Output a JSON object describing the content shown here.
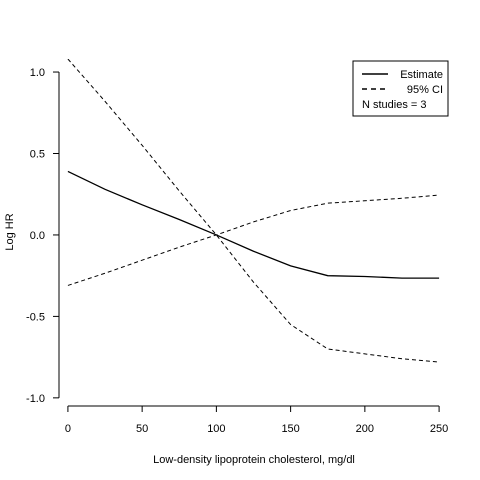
{
  "chart_data": {
    "type": "line",
    "title": "",
    "xlabel": "Low-density lipoprotein cholesterol, mg/dl",
    "ylabel": "Log HR",
    "xlim": [
      -6,
      256
    ],
    "ylim": [
      -1.05,
      1.08
    ],
    "x_ticks": [
      0,
      50,
      100,
      150,
      200,
      250
    ],
    "y_ticks": [
      -1.0,
      -0.5,
      0.0,
      0.5,
      1.0
    ],
    "x_tick_labels": [
      "0",
      "50",
      "100",
      "150",
      "200",
      "250"
    ],
    "y_tick_labels": [
      "-1.0",
      "-0.5",
      "0.0",
      "0.5",
      "1.0"
    ],
    "grid": false,
    "legend": {
      "placement": "top-right",
      "entries": [
        {
          "label": "Estimate",
          "line": "solid"
        },
        {
          "label": "95% CI",
          "line": "dashed"
        }
      ],
      "note": "N studies = 3"
    },
    "series": [
      {
        "role": "estimate",
        "line": "solid",
        "points": [
          [
            0,
            0.39
          ],
          [
            25,
            0.28
          ],
          [
            50,
            0.185
          ],
          [
            75,
            0.095
          ],
          [
            100,
            0.0
          ],
          [
            125,
            -0.1
          ],
          [
            150,
            -0.19
          ],
          [
            175,
            -0.25
          ],
          [
            200,
            -0.255
          ],
          [
            225,
            -0.265
          ],
          [
            250,
            -0.265
          ]
        ]
      },
      {
        "role": "ci_upper",
        "line": "dashed",
        "points": [
          [
            0,
            1.08
          ],
          [
            25,
            0.82
          ],
          [
            50,
            0.55
          ],
          [
            75,
            0.27
          ],
          [
            100,
            0.0
          ],
          [
            125,
            -0.29
          ],
          [
            150,
            -0.55
          ],
          [
            175,
            -0.7
          ],
          [
            200,
            -0.73
          ],
          [
            225,
            -0.76
          ],
          [
            250,
            -0.78
          ]
        ]
      },
      {
        "role": "ci_lower",
        "line": "dashed",
        "points": [
          [
            0,
            -0.31
          ],
          [
            25,
            -0.235
          ],
          [
            50,
            -0.155
          ],
          [
            75,
            -0.075
          ],
          [
            100,
            0.0
          ],
          [
            125,
            0.08
          ],
          [
            150,
            0.15
          ],
          [
            175,
            0.195
          ],
          [
            200,
            0.21
          ],
          [
            225,
            0.225
          ],
          [
            250,
            0.245
          ]
        ]
      }
    ]
  }
}
